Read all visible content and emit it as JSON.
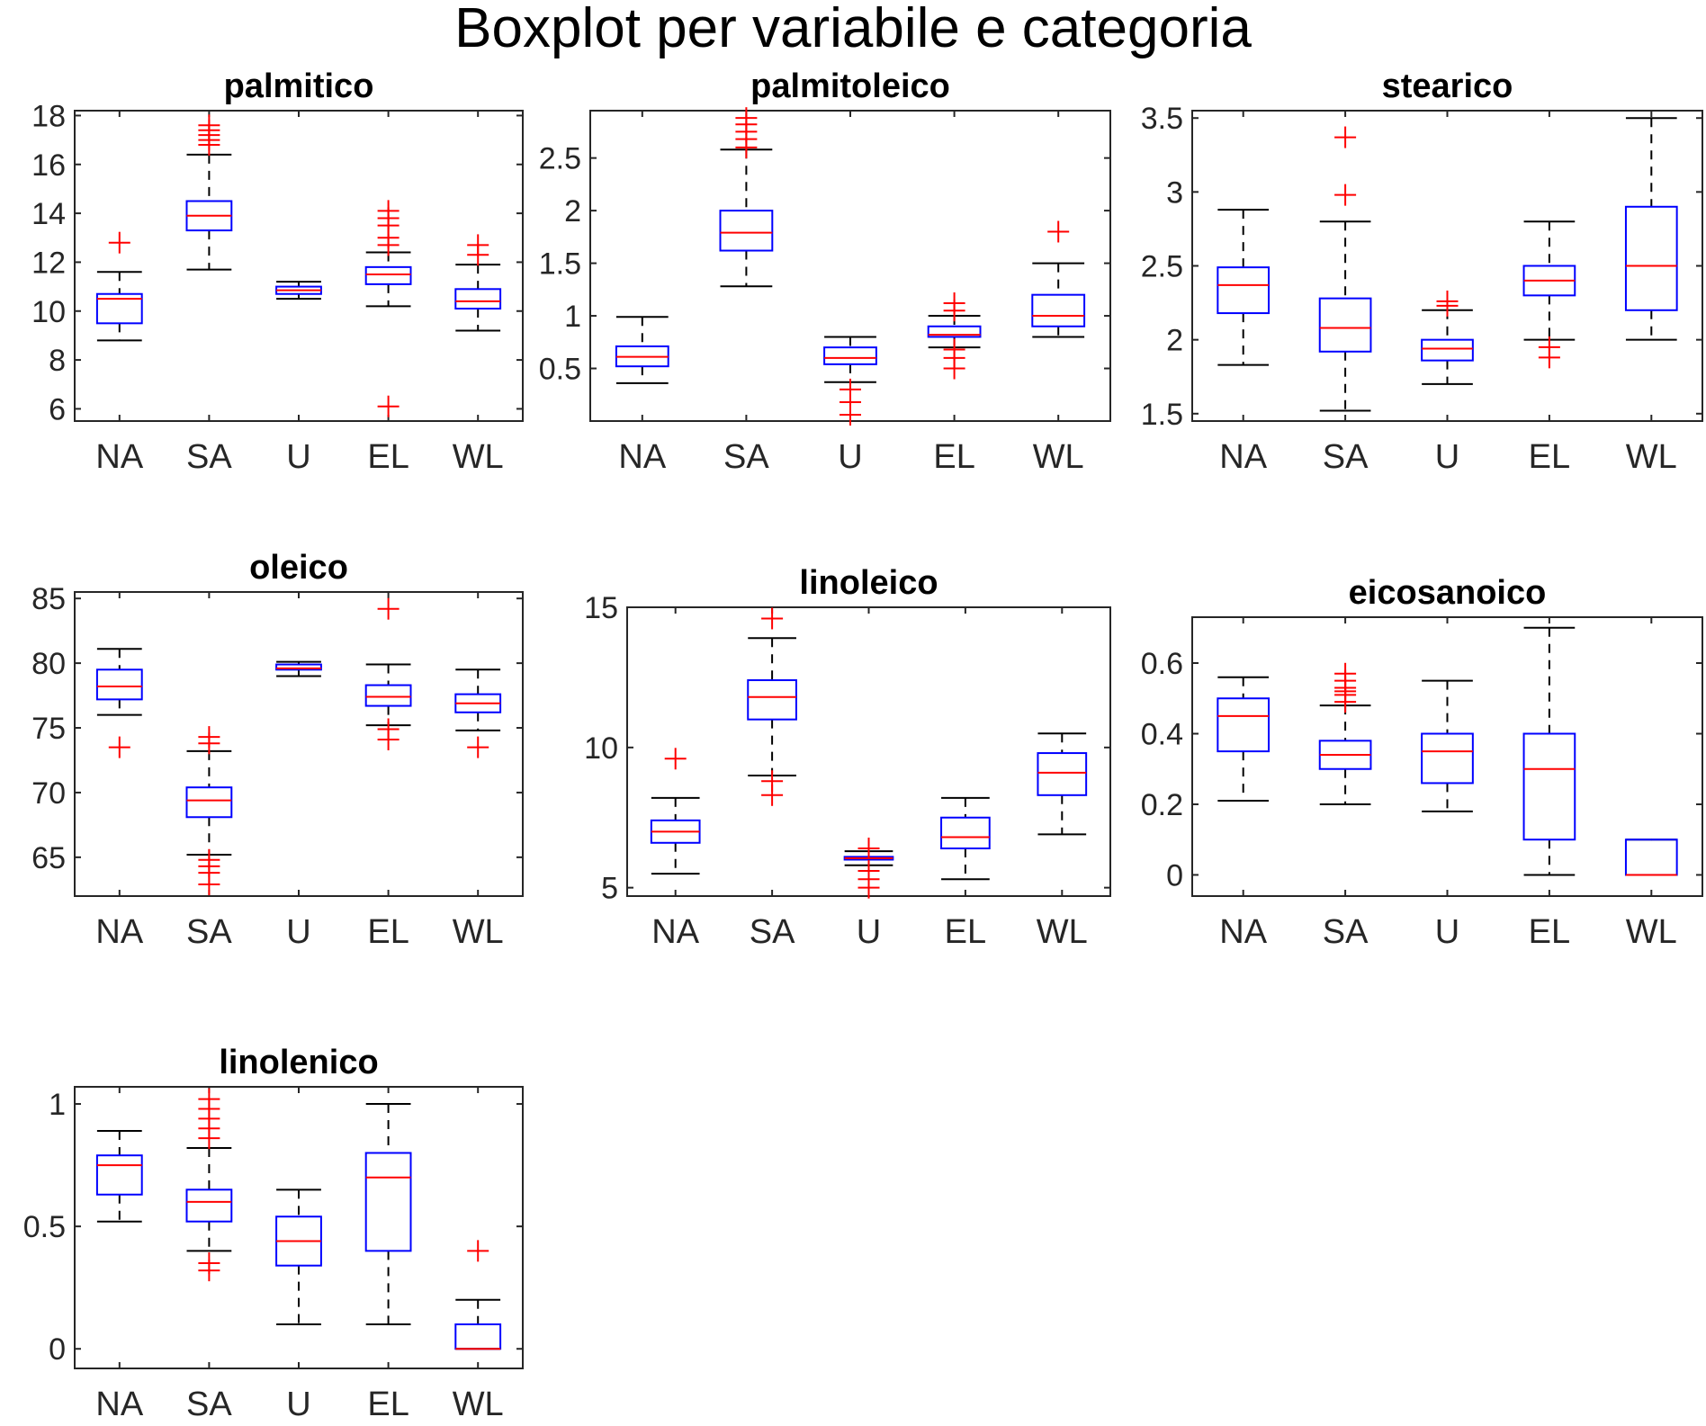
{
  "figure": {
    "title": "Boxplot per variabile e categoria"
  },
  "colors": {
    "box": "#0000ff",
    "median": "#ff0000",
    "whisker": "#000000",
    "outlier": "#ff0000",
    "axes": "#262626"
  },
  "chart_data": [
    {
      "type": "box",
      "title": "palmitico",
      "categories": [
        "NA",
        "SA",
        "U",
        "EL",
        "WL"
      ],
      "ylim": [
        5.5,
        18.2
      ],
      "yticks": [
        6,
        8,
        10,
        12,
        14,
        16,
        18
      ],
      "ytick_labels": [
        "6",
        "8",
        "10",
        "12",
        "14",
        "16",
        "18"
      ],
      "boxes": [
        {
          "q1": 9.5,
          "median": 10.5,
          "q3": 10.7,
          "lo": 8.8,
          "hi": 11.6,
          "outliers": [
            12.8
          ]
        },
        {
          "q1": 13.3,
          "median": 13.9,
          "q3": 14.5,
          "lo": 11.7,
          "hi": 16.4,
          "outliers": [
            16.8,
            17.0,
            17.2,
            17.4,
            17.6
          ]
        },
        {
          "q1": 10.7,
          "median": 10.85,
          "q3": 11.0,
          "lo": 10.5,
          "hi": 11.2,
          "outliers": []
        },
        {
          "q1": 11.1,
          "median": 11.5,
          "q3": 11.8,
          "lo": 10.2,
          "hi": 12.4,
          "outliers": [
            12.7,
            13.0,
            13.5,
            13.8,
            14.1,
            6.1
          ]
        },
        {
          "q1": 10.1,
          "median": 10.4,
          "q3": 10.9,
          "lo": 9.2,
          "hi": 11.9,
          "outliers": [
            12.3,
            12.7
          ]
        }
      ]
    },
    {
      "type": "box",
      "title": "palmitoleico",
      "categories": [
        "NA",
        "SA",
        "U",
        "EL",
        "WL"
      ],
      "ylim": [
        0.0,
        2.95
      ],
      "yticks": [
        0.5,
        1,
        1.5,
        2,
        2.5
      ],
      "ytick_labels": [
        "0.5",
        "1",
        "1.5",
        "2",
        "2.5"
      ],
      "boxes": [
        {
          "q1": 0.52,
          "median": 0.61,
          "q3": 0.71,
          "lo": 0.36,
          "hi": 0.99,
          "outliers": []
        },
        {
          "q1": 1.62,
          "median": 1.79,
          "q3": 2.0,
          "lo": 1.28,
          "hi": 2.58,
          "outliers": [
            2.6,
            2.68,
            2.75,
            2.82,
            2.88
          ]
        },
        {
          "q1": 0.54,
          "median": 0.6,
          "q3": 0.7,
          "lo": 0.37,
          "hi": 0.8,
          "outliers": [
            0.3,
            0.18,
            0.06
          ]
        },
        {
          "q1": 0.8,
          "median": 0.82,
          "q3": 0.9,
          "lo": 0.7,
          "hi": 1.0,
          "outliers": [
            0.6,
            0.68,
            0.5,
            1.05,
            1.12
          ]
        },
        {
          "q1": 0.9,
          "median": 1.0,
          "q3": 1.2,
          "lo": 0.8,
          "hi": 1.5,
          "outliers": [
            1.8
          ]
        }
      ]
    },
    {
      "type": "box",
      "title": "stearico",
      "categories": [
        "NA",
        "SA",
        "U",
        "EL",
        "WL"
      ],
      "ylim": [
        1.45,
        3.55
      ],
      "yticks": [
        1.5,
        2,
        2.5,
        3,
        3.5
      ],
      "ytick_labels": [
        "1.5",
        "2",
        "2.5",
        "3",
        "3.5"
      ],
      "boxes": [
        {
          "q1": 2.18,
          "median": 2.37,
          "q3": 2.49,
          "lo": 1.83,
          "hi": 2.88,
          "outliers": []
        },
        {
          "q1": 1.92,
          "median": 2.08,
          "q3": 2.28,
          "lo": 1.52,
          "hi": 2.8,
          "outliers": [
            2.98,
            3.37
          ]
        },
        {
          "q1": 1.86,
          "median": 1.94,
          "q3": 2.0,
          "lo": 1.7,
          "hi": 2.2,
          "outliers": [
            2.23,
            2.26
          ]
        },
        {
          "q1": 2.3,
          "median": 2.4,
          "q3": 2.5,
          "lo": 2.0,
          "hi": 2.8,
          "outliers": [
            1.88,
            1.95
          ]
        },
        {
          "q1": 2.2,
          "median": 2.5,
          "q3": 2.9,
          "lo": 2.0,
          "hi": 3.5,
          "outliers": []
        }
      ]
    },
    {
      "type": "box",
      "title": "oleico",
      "categories": [
        "NA",
        "SA",
        "U",
        "EL",
        "WL"
      ],
      "ylim": [
        62,
        85.5
      ],
      "yticks": [
        65,
        70,
        75,
        80,
        85
      ],
      "ytick_labels": [
        "65",
        "70",
        "75",
        "80",
        "85"
      ],
      "boxes": [
        {
          "q1": 77.2,
          "median": 78.2,
          "q3": 79.5,
          "lo": 76.0,
          "hi": 81.1,
          "outliers": [
            73.5
          ]
        },
        {
          "q1": 68.1,
          "median": 69.4,
          "q3": 70.4,
          "lo": 65.2,
          "hi": 73.2,
          "outliers": [
            74.3,
            73.8,
            64.8,
            64.3,
            63.8,
            62.9
          ]
        },
        {
          "q1": 79.5,
          "median": 79.6,
          "q3": 79.9,
          "lo": 79.0,
          "hi": 80.1,
          "outliers": []
        },
        {
          "q1": 76.7,
          "median": 77.4,
          "q3": 78.3,
          "lo": 75.2,
          "hi": 79.9,
          "outliers": [
            74.1,
            74.9,
            84.2
          ]
        },
        {
          "q1": 76.2,
          "median": 76.9,
          "q3": 77.6,
          "lo": 74.8,
          "hi": 79.5,
          "outliers": [
            73.5
          ]
        }
      ]
    },
    {
      "type": "box",
      "title": "linoleico",
      "categories": [
        "NA",
        "SA",
        "U",
        "EL",
        "WL"
      ],
      "ylim": [
        4.7,
        15.0
      ],
      "yticks": [
        5,
        10,
        15
      ],
      "ytick_labels": [
        "5",
        "10",
        "15"
      ],
      "boxes": [
        {
          "q1": 6.6,
          "median": 7.0,
          "q3": 7.4,
          "lo": 5.5,
          "hi": 8.2,
          "outliers": [
            9.6
          ]
        },
        {
          "q1": 11.0,
          "median": 11.8,
          "q3": 12.4,
          "lo": 9.0,
          "hi": 13.9,
          "outliers": [
            14.6,
            8.8,
            8.3
          ]
        },
        {
          "q1": 6.0,
          "median": 6.05,
          "q3": 6.1,
          "lo": 5.8,
          "hi": 6.3,
          "outliers": [
            6.4,
            5.6,
            5.3,
            5.0
          ]
        },
        {
          "q1": 6.4,
          "median": 6.8,
          "q3": 7.5,
          "lo": 5.3,
          "hi": 8.2,
          "outliers": []
        },
        {
          "q1": 8.3,
          "median": 9.1,
          "q3": 9.8,
          "lo": 6.9,
          "hi": 10.5,
          "outliers": []
        }
      ]
    },
    {
      "type": "box",
      "title": "eicosanoico",
      "categories": [
        "NA",
        "SA",
        "U",
        "EL",
        "WL"
      ],
      "ylim": [
        -0.06,
        0.73
      ],
      "yticks": [
        0,
        0.2,
        0.4,
        0.6
      ],
      "ytick_labels": [
        "0",
        "0.2",
        "0.4",
        "0.6"
      ],
      "boxes": [
        {
          "q1": 0.35,
          "median": 0.45,
          "q3": 0.5,
          "lo": 0.21,
          "hi": 0.56,
          "outliers": []
        },
        {
          "q1": 0.3,
          "median": 0.34,
          "q3": 0.38,
          "lo": 0.2,
          "hi": 0.48,
          "outliers": [
            0.49,
            0.51,
            0.52,
            0.53,
            0.55,
            0.57
          ]
        },
        {
          "q1": 0.26,
          "median": 0.35,
          "q3": 0.4,
          "lo": 0.18,
          "hi": 0.55,
          "outliers": []
        },
        {
          "q1": 0.1,
          "median": 0.3,
          "q3": 0.4,
          "lo": 0.0,
          "hi": 0.7,
          "outliers": []
        },
        {
          "q1": 0.0,
          "median": 0.0,
          "q3": 0.1,
          "lo": 0.0,
          "hi": 0.1,
          "outliers": []
        }
      ]
    },
    {
      "type": "box",
      "title": "linolenico",
      "categories": [
        "NA",
        "SA",
        "U",
        "EL",
        "WL"
      ],
      "ylim": [
        -0.08,
        1.07
      ],
      "yticks": [
        0,
        0.5,
        1
      ],
      "ytick_labels": [
        "0",
        "0.5",
        "1"
      ],
      "boxes": [
        {
          "q1": 0.63,
          "median": 0.75,
          "q3": 0.79,
          "lo": 0.52,
          "hi": 0.89,
          "outliers": []
        },
        {
          "q1": 0.52,
          "median": 0.6,
          "q3": 0.65,
          "lo": 0.4,
          "hi": 0.82,
          "outliers": [
            0.32,
            0.35,
            0.86,
            0.9,
            0.94,
            0.98,
            1.02
          ]
        },
        {
          "q1": 0.34,
          "median": 0.44,
          "q3": 0.54,
          "lo": 0.1,
          "hi": 0.65,
          "outliers": []
        },
        {
          "q1": 0.4,
          "median": 0.7,
          "q3": 0.8,
          "lo": 0.1,
          "hi": 1.0,
          "outliers": []
        },
        {
          "q1": 0.0,
          "median": 0.0,
          "q3": 0.1,
          "lo": 0.0,
          "hi": 0.2,
          "outliers": [
            0.4
          ]
        }
      ]
    }
  ]
}
